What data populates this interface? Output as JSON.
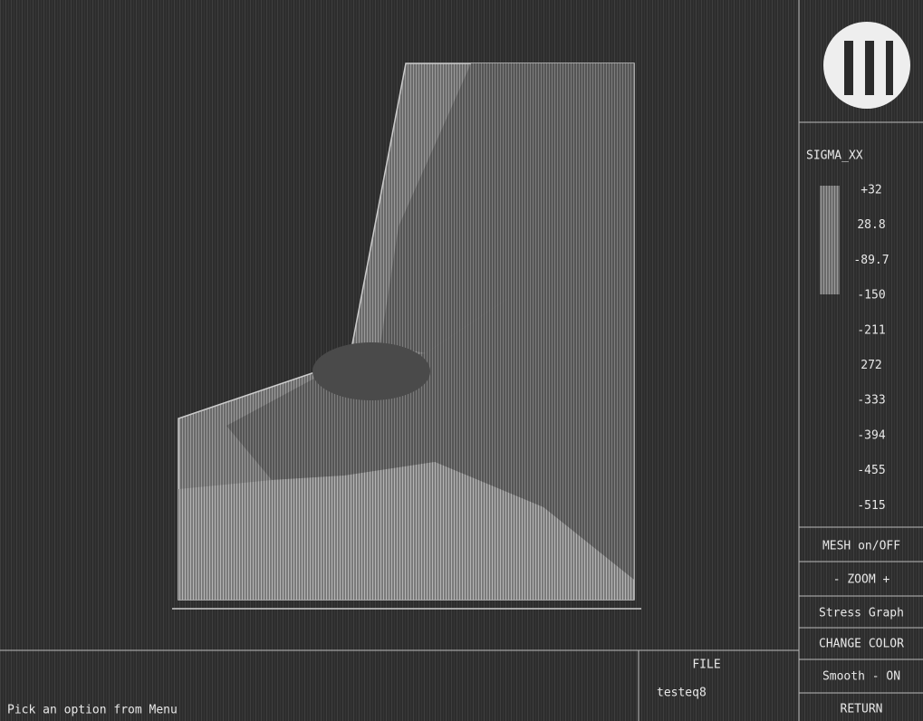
{
  "legend": {
    "title": "SIGMA_XX",
    "labels": [
      "+32",
      "28.8",
      "-89.7",
      "-150",
      "-211",
      "272",
      "-333",
      "-394",
      "-455",
      "-515"
    ]
  },
  "menu": [
    "MESH on/OFF",
    "- ZOOM +",
    "Stress Graph",
    "CHANGE COLOR",
    "Smooth - ON",
    "RETURN"
  ],
  "file": {
    "title": "FILE",
    "name": "testeq8"
  },
  "status": "Pick an option from Menu"
}
